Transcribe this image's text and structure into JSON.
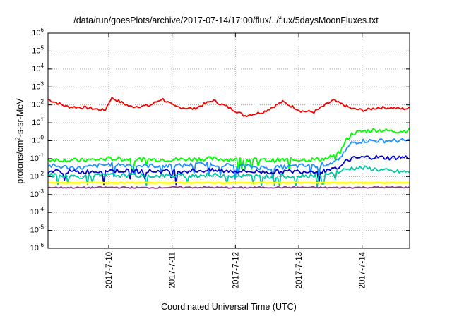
{
  "chart_data": {
    "type": "line",
    "title": "/data/run/goesPlots/archive/2017-07-14/17:00/flux/../flux/5daysMoonFluxes.txt",
    "xlabel": "Coordinated Universal Time (UTC)",
    "ylabel": "protons/cm^2-s-sr-MeV",
    "yscale": "log",
    "ylim": [
      1e-06,
      1000000.0
    ],
    "ytick_exponents": [
      -6,
      -5,
      -4,
      -3,
      -2,
      -1,
      0,
      1,
      2,
      3,
      4,
      5,
      6
    ],
    "x_ticks": [
      "2017-7-10",
      "2017-7-11",
      "2017-7-12",
      "2017-7-13",
      "2017-7-14"
    ],
    "xlim": [
      "2017-07-09 01:00",
      "2017-07-14 18:00"
    ],
    "grid": true,
    "series": [
      {
        "color": "#ff0000",
        "x": [
          0.0,
          0.3,
          0.6,
          0.9,
          1.0,
          1.3,
          1.6,
          1.8,
          2.0,
          2.3,
          2.6,
          2.9,
          3.1,
          3.4,
          3.7,
          4.0,
          4.2,
          4.5,
          4.8,
          5.0,
          5.2,
          5.4,
          5.6,
          5.7
        ],
        "y": [
          200,
          80,
          70,
          50,
          250,
          80,
          90,
          220,
          80,
          60,
          180,
          60,
          25,
          40,
          150,
          45,
          40,
          180,
          60,
          50,
          70,
          70,
          60,
          65
        ]
      },
      {
        "color": "#00ff00",
        "x": [
          0.0,
          0.5,
          1.0,
          1.5,
          2.0,
          2.5,
          3.0,
          3.5,
          4.0,
          4.2,
          4.4,
          4.6,
          4.7,
          4.8,
          5.0,
          5.2,
          5.4,
          5.6,
          5.7
        ],
        "y": [
          0.09,
          0.08,
          0.1,
          0.09,
          0.09,
          0.1,
          0.09,
          0.08,
          0.09,
          0.09,
          0.1,
          0.2,
          1.0,
          2.5,
          3.5,
          4.0,
          3.5,
          3.5,
          4.0
        ]
      },
      {
        "color": "#1e90ff",
        "x": [
          0.0,
          0.5,
          1.0,
          1.5,
          2.0,
          2.5,
          3.0,
          3.5,
          4.0,
          4.2,
          4.4,
          4.6,
          4.7,
          4.8,
          5.0,
          5.2,
          5.4,
          5.6,
          5.7
        ],
        "y": [
          0.04,
          0.03,
          0.05,
          0.04,
          0.04,
          0.05,
          0.04,
          0.03,
          0.04,
          0.04,
          0.05,
          0.08,
          0.3,
          0.8,
          1.0,
          1.0,
          1.0,
          1.0,
          1.0
        ]
      },
      {
        "color": "#0000cd",
        "x": [
          0.0,
          0.5,
          1.0,
          1.5,
          2.0,
          2.5,
          3.0,
          3.5,
          4.0,
          4.2,
          4.4,
          4.6,
          4.7,
          4.8,
          5.0,
          5.2,
          5.4,
          5.6,
          5.7
        ],
        "y": [
          0.02,
          0.018,
          0.022,
          0.02,
          0.02,
          0.022,
          0.02,
          0.018,
          0.02,
          0.02,
          0.02,
          0.03,
          0.07,
          0.1,
          0.12,
          0.12,
          0.11,
          0.12,
          0.12
        ]
      },
      {
        "color": "#00c8a0",
        "x": [
          0.0,
          0.5,
          1.0,
          1.5,
          2.0,
          2.5,
          3.0,
          3.5,
          4.0,
          4.2,
          4.4,
          4.6,
          4.8,
          5.0,
          5.2,
          5.4,
          5.6,
          5.7
        ],
        "y": [
          0.012,
          0.01,
          0.012,
          0.011,
          0.011,
          0.012,
          0.011,
          0.01,
          0.011,
          0.012,
          0.012,
          0.02,
          0.03,
          0.03,
          0.025,
          0.02,
          0.018,
          0.018
        ]
      },
      {
        "color": "#ffff00",
        "x": [
          0.0,
          1.0,
          2.0,
          3.0,
          4.0,
          5.0,
          5.7
        ],
        "y": [
          0.0045,
          0.0045,
          0.0045,
          0.0045,
          0.0045,
          0.0045,
          0.0045
        ]
      },
      {
        "color": "#8b3a8b",
        "x": [
          0.0,
          0.5,
          1.0,
          1.5,
          2.0,
          2.5,
          3.0,
          3.5,
          4.0,
          4.5,
          5.0,
          5.5,
          5.7
        ],
        "y": [
          0.0025,
          0.0024,
          0.0025,
          0.0024,
          0.0025,
          0.0025,
          0.0024,
          0.0025,
          0.0025,
          0.0024,
          0.0025,
          0.0025,
          0.0025
        ]
      }
    ]
  }
}
